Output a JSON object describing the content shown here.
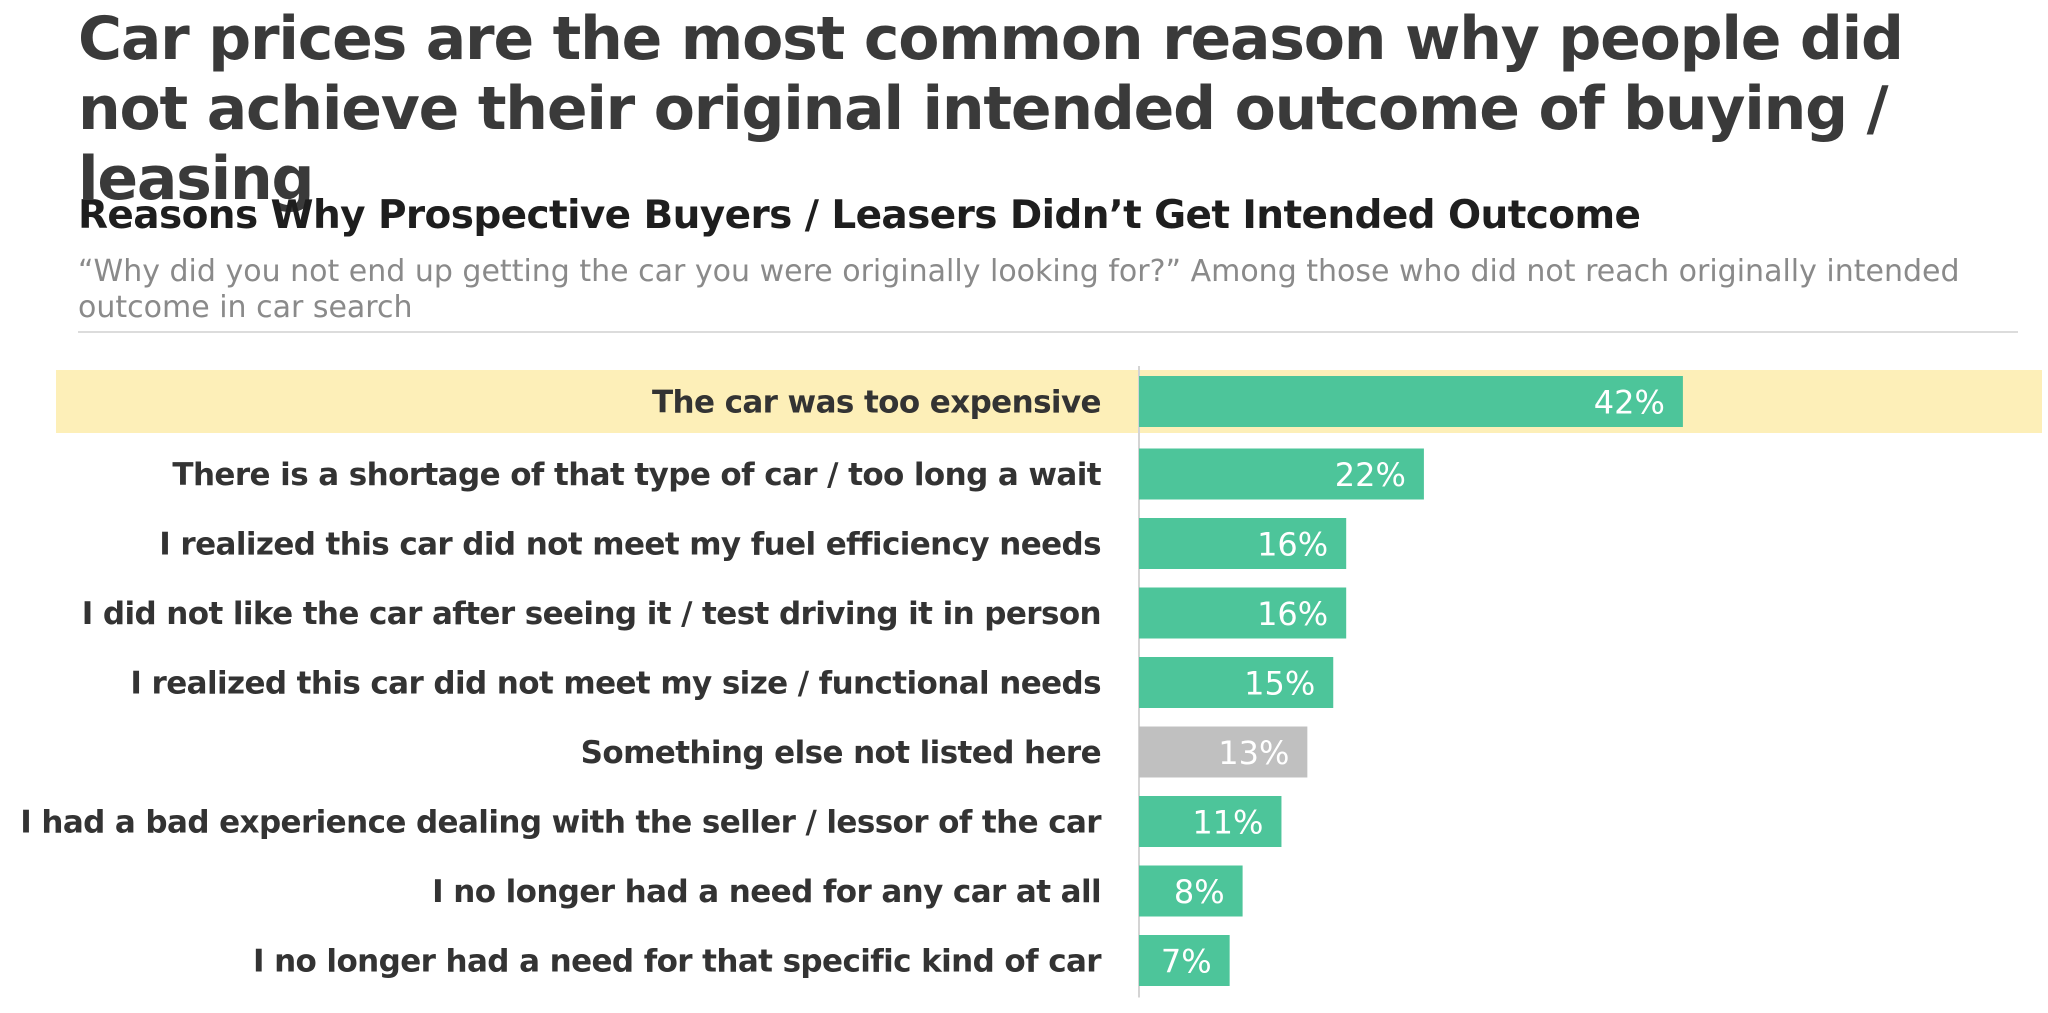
{
  "headline": "Car prices are the most common reason why people did not achieve their original intended outcome of buying / leasing",
  "colors": {
    "bar": "#4dc59a",
    "bar_other": "#c0c0c0",
    "highlight": "#fdefb8",
    "axis": "#d4d4d4"
  },
  "chart_data": {
    "type": "bar",
    "orientation": "horizontal",
    "title": "Reasons Why Prospective Buyers / Leasers Didn’t Get Intended Outcome",
    "subtitle": "“Why did you not end up getting the car you were originally looking for?”  Among those who did not reach originally intended outcome in car search",
    "xlabel": "",
    "ylabel": "",
    "xlim": [
      0,
      100
    ],
    "categories": [
      "The car was too expensive",
      "There is a shortage of that type of car / too long a wait",
      "I realized this car did not meet my fuel efficiency needs",
      "I did not like the car after seeing it / test driving it in person",
      "I realized this car did not meet my size / functional needs",
      "Something else not listed here",
      "I had a bad experience dealing with the seller / lessor of the car",
      "I no longer had a need for any car at all",
      "I no longer had a need for that specific kind of car"
    ],
    "values": [
      42,
      22,
      16,
      16,
      15,
      13,
      11,
      8,
      7
    ],
    "value_labels": [
      "42%",
      "22%",
      "16%",
      "16%",
      "15%",
      "13%",
      "11%",
      "8%",
      "7%"
    ],
    "highlighted": [
      true,
      false,
      false,
      false,
      false,
      false,
      false,
      false,
      false
    ],
    "grey_bars": [
      false,
      false,
      false,
      false,
      false,
      true,
      false,
      false,
      false
    ]
  }
}
